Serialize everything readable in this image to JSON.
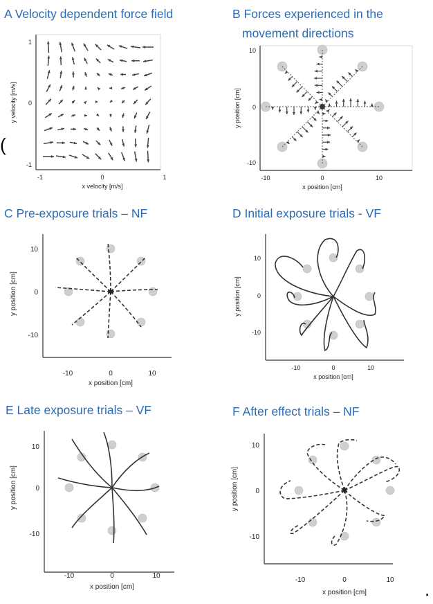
{
  "figure": {
    "stray_mark_left": "(",
    "stray_mark_right": "."
  },
  "panels": {
    "A": {
      "title": "A Velocity dependent force field",
      "xlabel": "x velocity [m/s]",
      "ylabel": "y velocity [m/s]",
      "xticks": [
        "-1",
        "0",
        "1"
      ],
      "yticks": [
        "1",
        "0",
        "-1"
      ]
    },
    "B": {
      "title_line1": "B Forces experienced in the",
      "title_line2": "movement directions",
      "xlabel": "x position [cm]",
      "ylabel": "y position [cm]",
      "xticks": [
        "-10",
        "0",
        "10"
      ],
      "yticks": [
        "10",
        "0",
        "-10"
      ]
    },
    "C": {
      "title": "C Pre-exposure trials – NF",
      "xlabel": "x position [cm]",
      "ylabel": "y position [cm]",
      "xticks": [
        "-10",
        "0",
        "10"
      ],
      "yticks": [
        "10",
        "0",
        "-10"
      ]
    },
    "D": {
      "title": "D Initial exposure trials - VF",
      "xlabel": "x position [cm]",
      "ylabel": "y position [cm]",
      "xticks": [
        "-10",
        "0",
        "10"
      ],
      "yticks": [
        "10",
        "0",
        "-10"
      ]
    },
    "E": {
      "title": "E Late exposure trials – VF",
      "xlabel": "x position [cm]",
      "ylabel": "y position [cm]",
      "xticks": [
        "-10",
        "0",
        "10"
      ],
      "yticks": [
        "10",
        "0",
        "-10"
      ]
    },
    "F": {
      "title": "F After effect trials – NF",
      "xlabel": "x position [cm]",
      "ylabel": "y position [cm]",
      "xticks": [
        "-10",
        "0",
        "10"
      ],
      "yticks": [
        "10",
        "0",
        "-10"
      ]
    }
  },
  "colors": {
    "title": "#2a6cb5",
    "ink": "#333333",
    "target": "#cfcfcf"
  }
}
